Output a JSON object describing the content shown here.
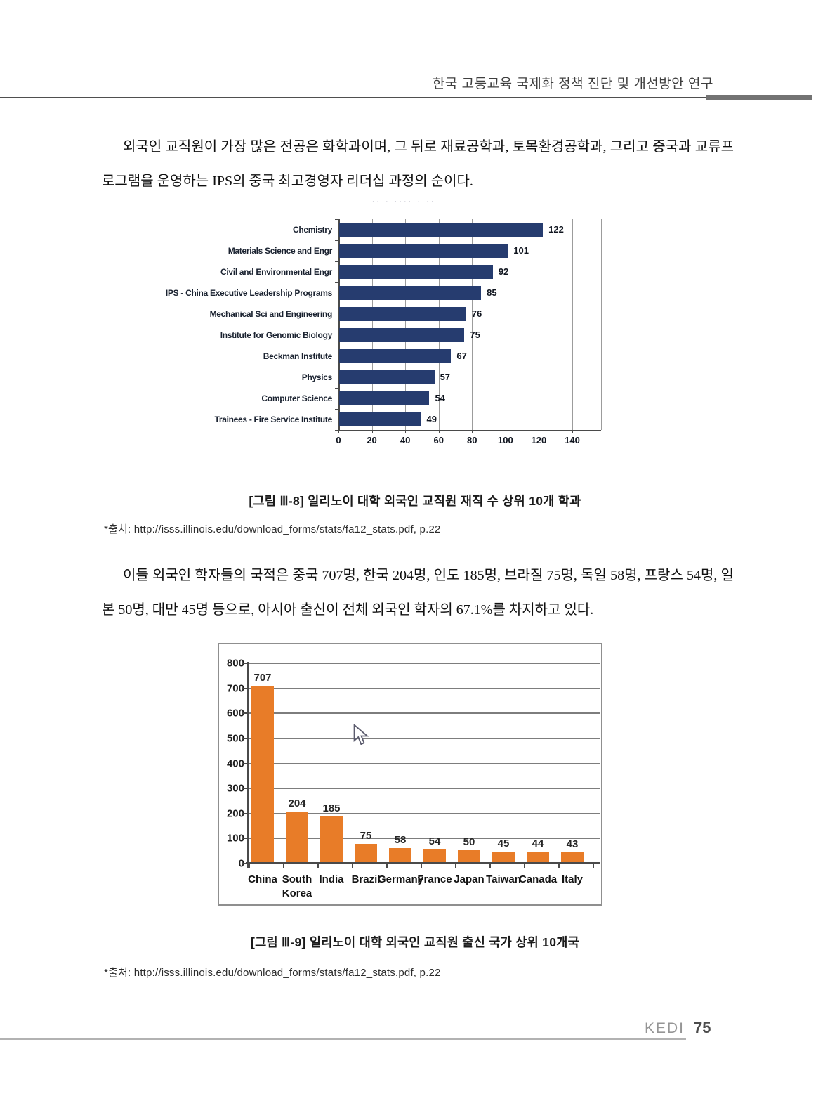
{
  "page_header": {
    "title": "한국 고등교육 국제화 정책 진단 및 개선방안 연구"
  },
  "paragraph1": "외국인 교직원이 가장 많은 전공은 화학과이며, 그 뒤로 재료공학과, 토목환경공학과, 그리고 중국과 교류프로그램을 운영하는 IPS의 중국 최고경영자 리더십 과정의 순이다.",
  "paragraph2": "이들 외국인 학자들의 국적은 중국 707명, 한국 204명, 인도 185명, 브라질 75명, 독일 58명, 프랑스 54명, 일본 50명, 대만 45명 등으로, 아시아 출신이 전체 외국인 학자의 67.1%를 차지하고 있다.",
  "figure1": {
    "faded_title_marks": "·· ·  ···· ·  ··",
    "caption": "[그림 Ⅲ-8] 일리노이 대학 외국인 교직원 재직 수 상위 10개 학과",
    "source": "*출처: http://isss.illinois.edu/download_forms/stats/fa12_stats.pdf,  p.22"
  },
  "figure2": {
    "caption": "[그림 Ⅲ-9] 일리노이 대학 외국인 교직원 출신 국가 상위 10개국",
    "source": "*출처: http://isss.illinois.edu/download_forms/stats/fa12_stats.pdf,  p.22"
  },
  "page_footer": {
    "brand": "KEDI",
    "page_number": "75"
  },
  "chart_data": [
    {
      "id": "fig-III-8",
      "type": "bar",
      "orientation": "horizontal",
      "title": "",
      "categories": [
        "Chemistry",
        "Materials Science and Engr",
        "Civil and Environmental Engr",
        "IPS - China Executive Leadership Programs",
        "Mechanical Sci and Engineering",
        "Institute for Genomic Biology",
        "Beckman Institute",
        "Physics",
        "Computer Science",
        "Trainees - Fire Service Institute"
      ],
      "values": [
        122,
        101,
        92,
        85,
        76,
        75,
        67,
        57,
        54,
        49
      ],
      "xlim": [
        0,
        140
      ],
      "xticks": [
        0,
        20,
        40,
        60,
        80,
        100,
        120,
        140
      ],
      "grid": true,
      "value_labels": true,
      "bar_color": "#263c6f",
      "legend": "none"
    },
    {
      "id": "fig-III-9",
      "type": "bar",
      "orientation": "vertical",
      "title": "",
      "categories": [
        "China",
        "South Korea",
        "India",
        "Brazil",
        "Germany",
        "France",
        "Japan",
        "Taiwan",
        "Canada",
        "Italy"
      ],
      "values": [
        707,
        204,
        185,
        75,
        58,
        54,
        50,
        45,
        44,
        43
      ],
      "ylim": [
        0,
        800
      ],
      "yticks": [
        0,
        100,
        200,
        300,
        400,
        500,
        600,
        700,
        800
      ],
      "grid": true,
      "value_labels": true,
      "bar_color": "#e87c28",
      "legend": "none"
    }
  ]
}
